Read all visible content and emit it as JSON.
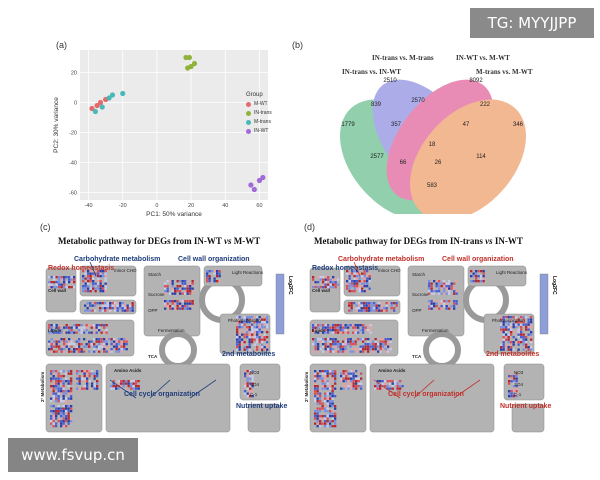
{
  "watermark_top": "TG: MYYJJPP",
  "watermark_bottom": "www.fsvup.cn",
  "panel_a": {
    "letter": "(a)",
    "xlabel": "PC1: 50% variance",
    "ylabel": "PC2: 30% variance",
    "xticks": [
      "-40",
      "-20",
      "0",
      "20",
      "40",
      "60"
    ],
    "yticks": [
      "20",
      "0",
      "-20",
      "-40",
      "-60"
    ],
    "legend_title": "Group",
    "legend": [
      {
        "label": "M-WT",
        "color": "#e46b6b"
      },
      {
        "label": "IN-trans",
        "color": "#8fb33a"
      },
      {
        "label": "M-trans",
        "color": "#49b8b8"
      },
      {
        "label": "IN-WT",
        "color": "#a26ad8"
      }
    ]
  },
  "chart_data": {
    "type": "scatter",
    "xlabel": "PC1: 50% variance",
    "ylabel": "PC2: 30% variance",
    "xlim": [
      -45,
      65
    ],
    "ylim": [
      -65,
      35
    ],
    "series": [
      {
        "name": "M-WT",
        "color": "#e46b6b",
        "points": [
          [
            -38,
            -4
          ],
          [
            -35,
            -2
          ],
          [
            -33,
            0
          ],
          [
            -30,
            2
          ]
        ]
      },
      {
        "name": "IN-trans",
        "color": "#8fb33a",
        "points": [
          [
            17,
            30
          ],
          [
            19,
            30
          ],
          [
            18,
            23
          ],
          [
            20,
            24
          ],
          [
            22,
            26
          ]
        ]
      },
      {
        "name": "M-trans",
        "color": "#49b8b8",
        "points": [
          [
            -36,
            -6
          ],
          [
            -32,
            -3
          ],
          [
            -28,
            3
          ],
          [
            -26,
            5
          ],
          [
            -20,
            6
          ]
        ]
      },
      {
        "name": "IN-WT",
        "color": "#a26ad8",
        "points": [
          [
            55,
            -55
          ],
          [
            57,
            -58
          ],
          [
            60,
            -52
          ],
          [
            62,
            -50
          ]
        ]
      }
    ]
  },
  "panel_b": {
    "letter": "(b)",
    "sets": [
      {
        "label": "IN-trans vs. IN-WT",
        "color": "#3aa86b"
      },
      {
        "label": "IN-trans vs.  M-trans",
        "color": "#6a6ad8"
      },
      {
        "label": "IN-WT vs. M-WT",
        "color": "#d8307a"
      },
      {
        "label": "M-trans vs. M-WT",
        "color": "#e87f3a"
      }
    ],
    "numbers": [
      "1779",
      "2510",
      "8092",
      "346",
      "839",
      "2570",
      "222",
      "357",
      "47",
      "18",
      "2577",
      "66",
      "26",
      "114",
      "583"
    ]
  },
  "panel_c": {
    "letter": "(c)",
    "title_prefix": "Metabolic pathway for DEGs from IN-WT ",
    "title_vs": "vs",
    "title_suffix": " M-WT",
    "legend": "Log2FC",
    "annotations": {
      "carb": "Carbohydrate metabolism",
      "redox": "Redox homeostasis",
      "cellwall_org": "Cell wall organization",
      "cellcycle": "Cell cycle organization",
      "metabolites": "2nd metabolites",
      "nutrient": "Nutrient uptake"
    },
    "labels": {
      "minor_cho": "minor CHO",
      "cell_wall": "Cell wall",
      "lipids": "Lipids",
      "tca": "TCA",
      "amino": "Amino Acids",
      "second_met": "2° Metabolism",
      "starch": "Starch",
      "sucrose": "Sucrose",
      "opp": "OPP",
      "light": "Light Reactions",
      "photorespiration": "Photorespiration",
      "fermentation": "Fermentation",
      "no3": "NO3",
      "so4": "SO4",
      "c1": "C-1"
    }
  },
  "panel_d": {
    "letter": "(d)",
    "title_prefix": "Metabolic pathway for DEGs from IN-trans ",
    "title_vs": "vs",
    "title_suffix": " IN-WT",
    "legend": "Log2FC",
    "annotations": {
      "carb": "Carbohydrate metabolism",
      "redox": "Redox homeostasis",
      "cellwall_org": "Cell wall organization",
      "cellcycle": "Cell cycle organization",
      "metabolites": "2nd metabolites",
      "nutrient": "Nutrient uptake"
    },
    "labels": {
      "minor_cho": "minor CHO",
      "cell_wall": "Cell wall",
      "lipids": "Lipids",
      "tca": "TCA",
      "amino": "Amino Acids",
      "second_met": "2° Metabolism",
      "starch": "Starch",
      "sucrose": "Sucrose",
      "opp": "OPP",
      "light": "Light Reactions",
      "photorespiration": "Photorespiration",
      "fermentation": "Fermentation",
      "no3": "NO3",
      "so4": "SO4",
      "c1": "C-1"
    }
  }
}
